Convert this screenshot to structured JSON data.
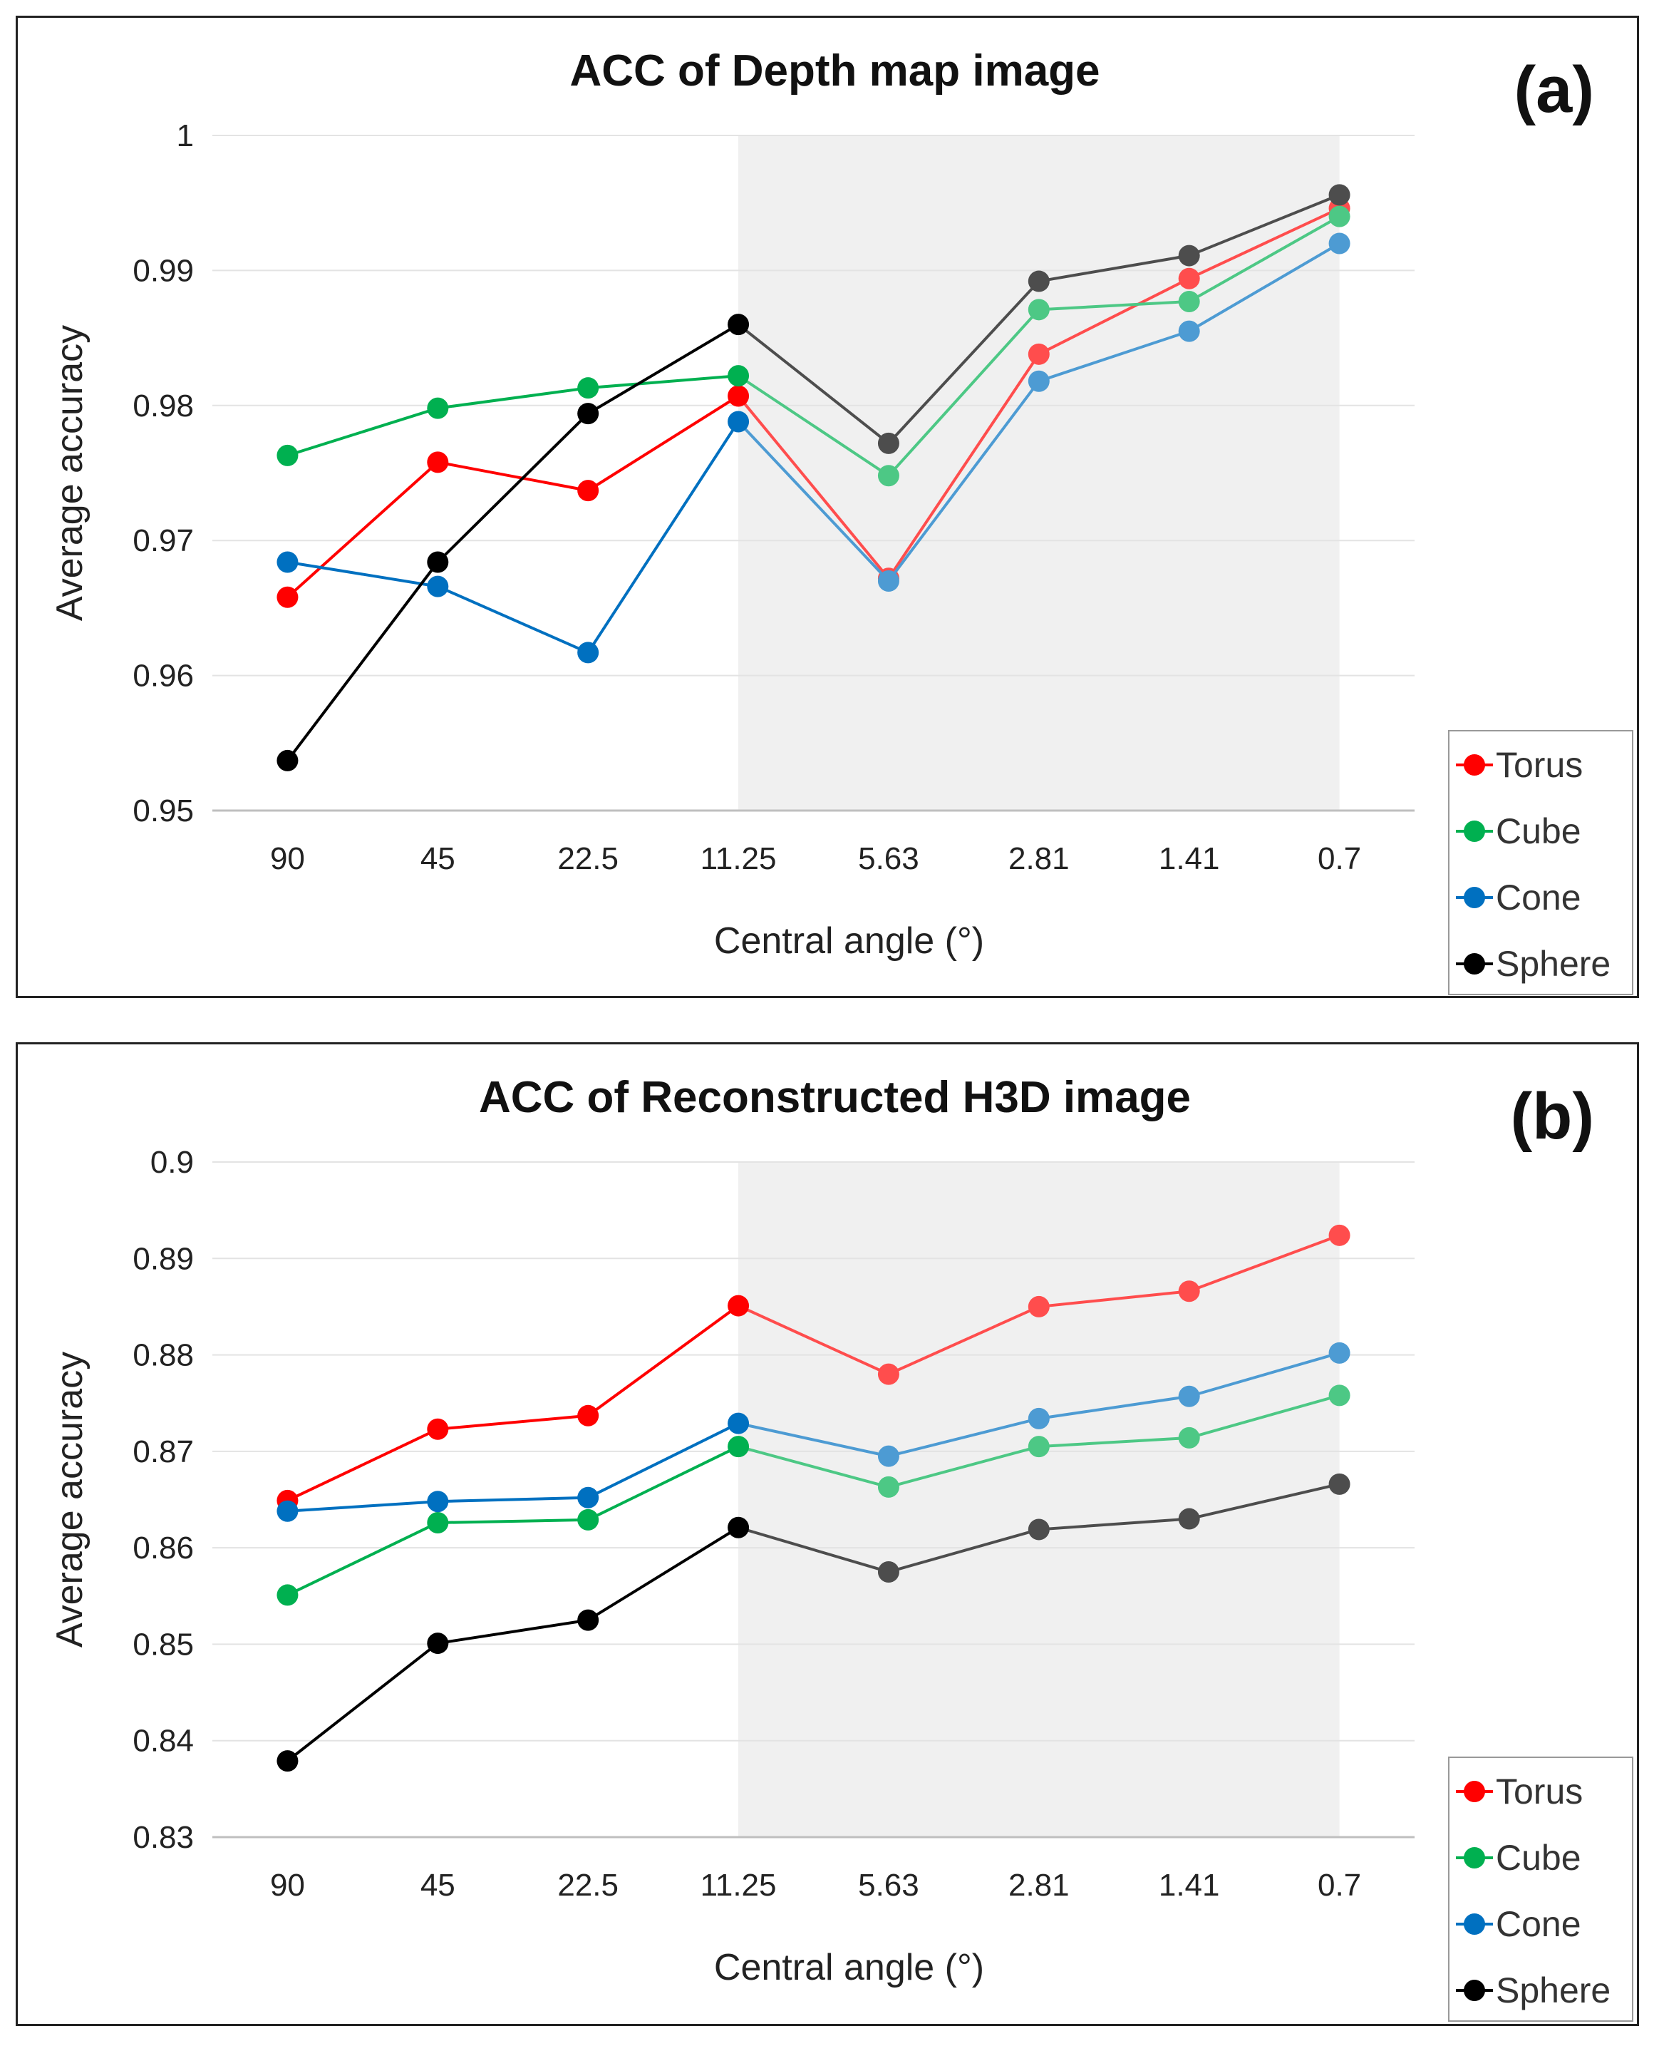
{
  "chart_data": [
    {
      "type": "line",
      "title": "ACC of Depth map image",
      "panel_label": "(a)",
      "xlabel": "Central angle (°)",
      "ylabel": "Average accuracy",
      "categories": [
        "90",
        "45",
        "22.5",
        "11.25",
        "5.63",
        "2.81",
        "1.41",
        "0.7"
      ],
      "ylim": [
        0.95,
        1
      ],
      "yticks": [
        "0.95",
        "0.96",
        "0.97",
        "0.98",
        "0.99",
        "1"
      ],
      "shaded_region": [
        "11.25",
        "0.7"
      ],
      "legend_position": "bottom-right",
      "grid": true,
      "series": [
        {
          "name": "Torus",
          "color": "#ff0000",
          "values": [
            0.9658,
            0.9758,
            0.9737,
            0.9807,
            0.9672,
            0.9838,
            0.9894,
            0.9946
          ]
        },
        {
          "name": "Cube",
          "color": "#00b050",
          "values": [
            0.9763,
            0.9798,
            0.9813,
            0.9822,
            0.9748,
            0.9871,
            0.9877,
            0.994
          ]
        },
        {
          "name": "Cone",
          "color": "#0070c0",
          "values": [
            0.9684,
            0.9666,
            0.9617,
            0.9788,
            0.967,
            0.9818,
            0.9855,
            0.992
          ]
        },
        {
          "name": "Sphere",
          "color": "#000000",
          "values": [
            0.9537,
            0.9684,
            0.9794,
            0.986,
            0.9772,
            0.9892,
            0.9911,
            0.9956
          ]
        }
      ]
    },
    {
      "type": "line",
      "title": "ACC of Reconstructed H3D image",
      "panel_label": "(b)",
      "xlabel": "Central angle (°)",
      "ylabel": "Average accuracy",
      "categories": [
        "90",
        "45",
        "22.5",
        "11.25",
        "5.63",
        "2.81",
        "1.41",
        "0.7"
      ],
      "ylim": [
        0.83,
        0.9
      ],
      "yticks": [
        "0.83",
        "0.84",
        "0.85",
        "0.86",
        "0.87",
        "0.88",
        "0.89",
        "0.9"
      ],
      "shaded_region": [
        "11.25",
        "0.7"
      ],
      "legend_position": "bottom-right",
      "grid": true,
      "series": [
        {
          "name": "Torus",
          "color": "#ff0000",
          "values": [
            0.8649,
            0.8723,
            0.8737,
            0.8851,
            0.878,
            0.885,
            0.8866,
            0.8924
          ]
        },
        {
          "name": "Cube",
          "color": "#00b050",
          "values": [
            0.8551,
            0.8626,
            0.8629,
            0.8705,
            0.8663,
            0.8705,
            0.8714,
            0.8758
          ]
        },
        {
          "name": "Cone",
          "color": "#0070c0",
          "values": [
            0.8638,
            0.8648,
            0.8652,
            0.8729,
            0.8695,
            0.8734,
            0.8757,
            0.8802
          ]
        },
        {
          "name": "Sphere",
          "color": "#000000",
          "values": [
            0.8379,
            0.8501,
            0.8525,
            0.8621,
            0.8575,
            0.8619,
            0.863,
            0.8666
          ]
        }
      ]
    }
  ]
}
